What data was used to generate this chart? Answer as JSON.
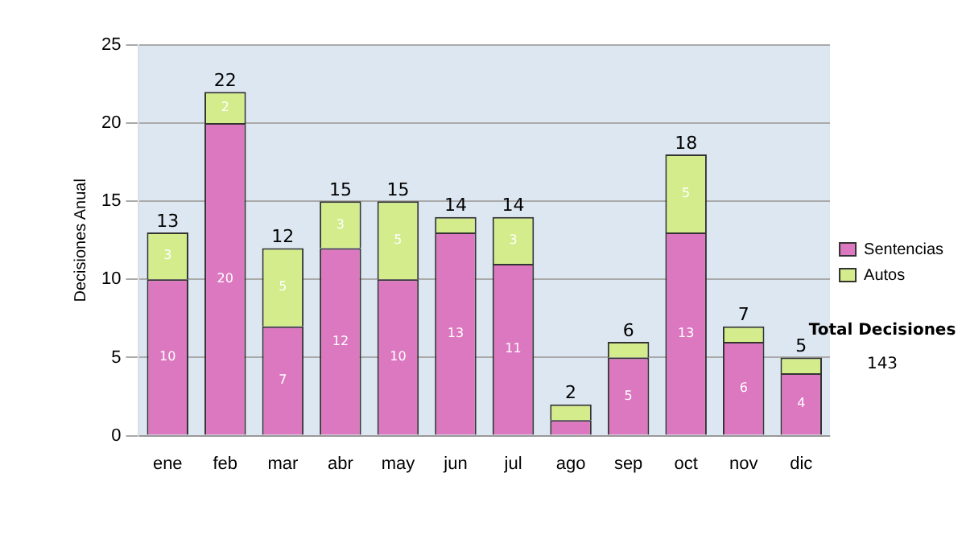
{
  "chart_data": {
    "type": "bar",
    "stacked": true,
    "ylabel": "Decisiones Anual",
    "categories": [
      "ene",
      "feb",
      "mar",
      "abr",
      "may",
      "jun",
      "jul",
      "ago",
      "sep",
      "oct",
      "nov",
      "dic"
    ],
    "series": [
      {
        "name": "Sentencias",
        "color": "#dc78c0",
        "values": [
          10,
          20,
          7,
          12,
          10,
          13,
          11,
          1,
          5,
          13,
          6,
          4
        ],
        "value_labels": [
          "10",
          "20",
          "7",
          "12",
          "10",
          "13",
          "11",
          null,
          "5",
          "13",
          "6",
          "4"
        ]
      },
      {
        "name": "Autos",
        "color": "#d4ec8c",
        "values": [
          3,
          2,
          5,
          3,
          5,
          1,
          3,
          1,
          1,
          5,
          1,
          1
        ],
        "value_labels": [
          "3",
          "2",
          "5",
          "3",
          "5",
          null,
          "3",
          null,
          null,
          "5",
          null,
          null
        ]
      }
    ],
    "totals": [
      "13",
      "22",
      "12",
      "15",
      "15",
      "14",
      "14",
      "2",
      "6",
      "18",
      "7",
      "5"
    ],
    "ylim": [
      0,
      25
    ],
    "yticks": [
      0,
      5,
      10,
      15,
      20,
      25
    ],
    "grid": "y",
    "legend": "right",
    "annotations": [
      "Total Decisiones",
      "143"
    ]
  }
}
